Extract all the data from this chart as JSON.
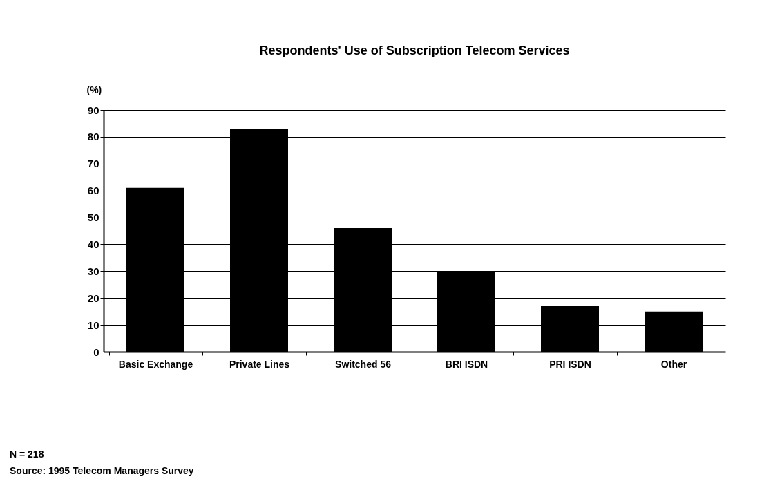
{
  "chart_data": {
    "type": "bar",
    "title": "Respondents' Use of Subscription Telecom Services",
    "ylabel": "(%)",
    "categories": [
      "Basic Exchange",
      "Private Lines",
      "Switched 56",
      "BRI ISDN",
      "PRI ISDN",
      "Other"
    ],
    "values": [
      61,
      83,
      46,
      30,
      17,
      15
    ],
    "color": "#000000",
    "ylim": [
      0,
      90
    ],
    "yticks": [
      0,
      10,
      20,
      30,
      40,
      50,
      60,
      70,
      80,
      90
    ],
    "grid": "y",
    "annotations": [
      "N = 218",
      "Source: 1995 Telecom Managers Survey"
    ]
  }
}
